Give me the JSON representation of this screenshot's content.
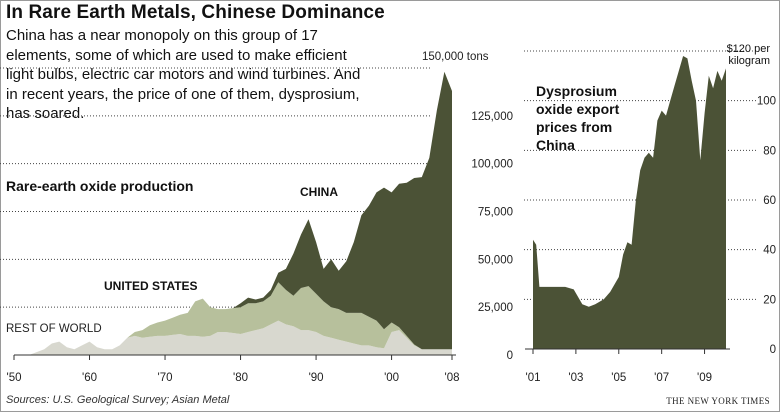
{
  "headline": "In Rare Earth Metals, Chinese Dominance",
  "intro": "China has a near monopoly on this group of 17 elements, some of which are used to make efficient light bulbs, electric car motors and wind turbines. And in recent years, the price of one of them, dysprosium, has soared.",
  "source": "Sources: U.S. Geological Survey; Asian Metal",
  "credit": "THE NEW YORK TIMES",
  "colors": {
    "china": "#4b5236",
    "united_states": "#b7c09c",
    "rest_of_world": "#d8d8cf",
    "dysprosium": "#4b5236"
  },
  "chart_data": [
    {
      "type": "area",
      "stacked": true,
      "title": "Rare-earth oxide production",
      "unit_label": "150,000 tons",
      "x_ticks": [
        "'50",
        "'60",
        "'70",
        "'80",
        "'90",
        "'00",
        "'08"
      ],
      "y_ticks": [
        "0",
        "25,000",
        "50,000",
        "75,000",
        "100,000",
        "125,000",
        "150,000 tons"
      ],
      "ylim": [
        0,
        150000
      ],
      "xlim": [
        1950,
        2008
      ],
      "grid": "dotted horizontal",
      "x": [
        1950,
        1952,
        1954,
        1955,
        1956,
        1957,
        1958,
        1959,
        1960,
        1961,
        1962,
        1963,
        1964,
        1965,
        1966,
        1967,
        1968,
        1969,
        1970,
        1971,
        1972,
        1973,
        1974,
        1975,
        1976,
        1977,
        1978,
        1979,
        1980,
        1981,
        1982,
        1983,
        1984,
        1985,
        1986,
        1987,
        1988,
        1989,
        1990,
        1991,
        1992,
        1993,
        1994,
        1995,
        1996,
        1997,
        1998,
        1999,
        2000,
        2001,
        2002,
        2003,
        2004,
        2005,
        2006,
        2007,
        2008
      ],
      "series": [
        {
          "name": "REST OF WORLD",
          "values": [
            0,
            0,
            3000,
            6000,
            7000,
            4000,
            3000,
            5000,
            7000,
            4000,
            3000,
            3000,
            5000,
            9000,
            10000,
            9000,
            9500,
            10000,
            10000,
            10500,
            11000,
            10000,
            10000,
            9500,
            10000,
            12000,
            12000,
            11500,
            11000,
            12000,
            13000,
            14000,
            16000,
            18000,
            16000,
            15000,
            13000,
            13000,
            12000,
            10000,
            9000,
            8000,
            7000,
            6000,
            5000,
            5000,
            4000,
            3500,
            12000,
            13000,
            9000,
            5000,
            3000,
            3000,
            3000,
            3000,
            3000
          ]
        },
        {
          "name": "UNITED STATES",
          "values": [
            0,
            0,
            0,
            0,
            0,
            0,
            0,
            0,
            0,
            0,
            0,
            0,
            0,
            0,
            2000,
            4000,
            6000,
            7000,
            8000,
            9000,
            10000,
            12000,
            18000,
            20000,
            15000,
            12000,
            12000,
            13000,
            14000,
            15000,
            14000,
            14000,
            15000,
            20000,
            18000,
            16000,
            22000,
            23000,
            20000,
            18000,
            16000,
            16000,
            15000,
            16000,
            17000,
            15000,
            14000,
            10000,
            5000,
            1500,
            1000,
            500,
            0,
            0,
            0,
            0,
            0
          ]
        },
        {
          "name": "CHINA",
          "values": [
            0,
            0,
            0,
            0,
            0,
            0,
            0,
            0,
            0,
            0,
            0,
            0,
            0,
            0,
            0,
            0,
            0,
            0,
            0,
            0,
            0,
            0,
            0,
            0,
            0,
            0,
            0,
            0,
            2000,
            3000,
            2000,
            2000,
            3000,
            5000,
            11000,
            22000,
            28000,
            35000,
            27000,
            17000,
            25000,
            20000,
            27000,
            37000,
            51000,
            58000,
            67000,
            74000,
            68000,
            75000,
            80000,
            87000,
            90000,
            100000,
            125000,
            145000,
            135000
          ]
        }
      ]
    },
    {
      "type": "area",
      "title": "Dysprosium oxide export prices from China",
      "unit_label": "$120 per kilogram",
      "x_ticks": [
        "'01",
        "'03",
        "'05",
        "'07",
        "'09"
      ],
      "y_ticks": [
        "0",
        "20",
        "40",
        "60",
        "80",
        "100",
        "$120"
      ],
      "ylim": [
        0,
        120
      ],
      "xlim": [
        2001,
        2010
      ],
      "grid": "dotted horizontal",
      "series": [
        {
          "name": "Dysprosium oxide",
          "x": [
            2001,
            2001.15,
            2001.3,
            2002,
            2002.5,
            2002.9,
            2003.3,
            2003.6,
            2003.9,
            2004.3,
            2004.6,
            2005.0,
            2005.2,
            2005.4,
            2005.6,
            2005.8,
            2006.0,
            2006.2,
            2006.4,
            2006.6,
            2006.8,
            2007.0,
            2007.2,
            2007.4,
            2007.6,
            2007.8,
            2008.0,
            2008.2,
            2008.4,
            2008.6,
            2008.8,
            2009.0,
            2009.2,
            2009.4,
            2009.6,
            2009.8,
            2010.0
          ],
          "values": [
            44,
            42,
            25,
            25,
            25,
            24,
            18,
            17,
            18,
            20,
            23,
            29,
            38,
            43,
            42,
            60,
            72,
            77,
            79,
            77,
            92,
            96,
            94,
            100,
            106,
            112,
            118,
            117,
            108,
            100,
            76,
            95,
            110,
            105,
            112,
            108,
            113
          ]
        }
      ]
    }
  ]
}
